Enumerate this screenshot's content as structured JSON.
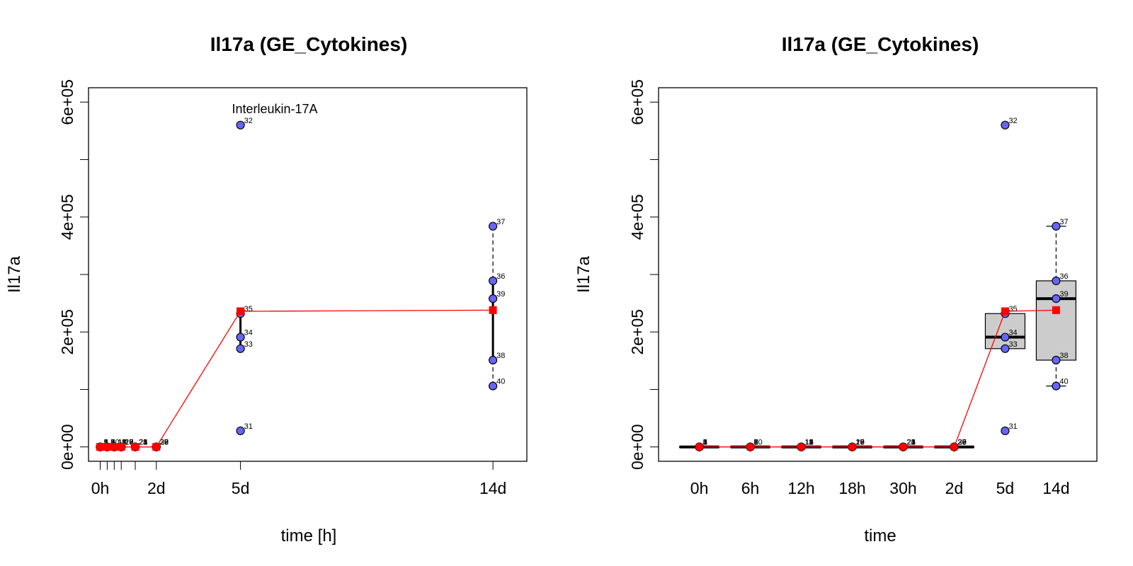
{
  "colors": {
    "points": "#6666ff",
    "point_stroke": "#000000",
    "mean": "#ff0000",
    "box_fill": "#cccccc"
  },
  "chart_data": [
    {
      "type": "scatter",
      "title": "Il17a (GE_Cytokines)",
      "xlabel": "time [h]",
      "ylabel": "Il17a",
      "annotation": "Interleukin-17A",
      "xlim": [
        -10,
        365
      ],
      "ylim": [
        -25000,
        625000
      ],
      "y_ticks": [
        0,
        200000,
        400000,
        600000
      ],
      "y_tick_labels": [
        "0e+00",
        "2e+05",
        "4e+05",
        "6e+05"
      ],
      "x_minor_ticks": [
        0,
        6,
        12,
        18,
        30
      ],
      "x_ticks": [
        0,
        48,
        120,
        336
      ],
      "x_tick_labels": [
        "0h",
        "2d",
        "5d",
        "14d"
      ],
      "points": [
        {
          "x": 0,
          "y": 0,
          "label": "1"
        },
        {
          "x": 0,
          "y": 0,
          "label": "2"
        },
        {
          "x": 0,
          "y": 0,
          "label": "3"
        },
        {
          "x": 0,
          "y": 0,
          "label": "4"
        },
        {
          "x": 0,
          "y": 0,
          "label": "5"
        },
        {
          "x": 6,
          "y": 0,
          "label": "6"
        },
        {
          "x": 6,
          "y": 0,
          "label": "7"
        },
        {
          "x": 6,
          "y": 0,
          "label": "8"
        },
        {
          "x": 6,
          "y": 0,
          "label": "9"
        },
        {
          "x": 6,
          "y": 0,
          "label": "10"
        },
        {
          "x": 12,
          "y": 0,
          "label": "11"
        },
        {
          "x": 12,
          "y": 0,
          "label": "12"
        },
        {
          "x": 12,
          "y": 0,
          "label": "13"
        },
        {
          "x": 12,
          "y": 0,
          "label": "14"
        },
        {
          "x": 12,
          "y": 0,
          "label": "15"
        },
        {
          "x": 18,
          "y": 0,
          "label": "16"
        },
        {
          "x": 18,
          "y": 0,
          "label": "17"
        },
        {
          "x": 18,
          "y": 0,
          "label": "18"
        },
        {
          "x": 18,
          "y": 0,
          "label": "19"
        },
        {
          "x": 18,
          "y": 0,
          "label": "20"
        },
        {
          "x": 30,
          "y": 0,
          "label": "21"
        },
        {
          "x": 30,
          "y": 0,
          "label": "22"
        },
        {
          "x": 30,
          "y": 0,
          "label": "23"
        },
        {
          "x": 30,
          "y": 0,
          "label": "24"
        },
        {
          "x": 30,
          "y": 0,
          "label": "25"
        },
        {
          "x": 48,
          "y": 0,
          "label": "26"
        },
        {
          "x": 48,
          "y": 0,
          "label": "27"
        },
        {
          "x": 48,
          "y": 0,
          "label": "28"
        },
        {
          "x": 48,
          "y": 0,
          "label": "29"
        },
        {
          "x": 48,
          "y": 0,
          "label": "30"
        },
        {
          "x": 120,
          "y": 28000,
          "label": "31"
        },
        {
          "x": 120,
          "y": 560000,
          "label": "32"
        },
        {
          "x": 120,
          "y": 171000,
          "label": "33"
        },
        {
          "x": 120,
          "y": 191000,
          "label": "34"
        },
        {
          "x": 120,
          "y": 232000,
          "label": "35"
        },
        {
          "x": 336,
          "y": 289000,
          "label": "36"
        },
        {
          "x": 336,
          "y": 384000,
          "label": "37"
        },
        {
          "x": 336,
          "y": 151000,
          "label": "38"
        },
        {
          "x": 336,
          "y": 258000,
          "label": "39"
        },
        {
          "x": 336,
          "y": 106000,
          "label": "40"
        }
      ],
      "mean_line": {
        "x": [
          0,
          6,
          12,
          18,
          30,
          48,
          120,
          336
        ],
        "y": [
          0,
          0,
          0,
          0,
          0,
          0,
          236000,
          238000
        ]
      },
      "whiskers": [
        {
          "x": 120,
          "low": 171000,
          "high": 232000,
          "whisker_low": 171000,
          "whisker_high": 232000
        },
        {
          "x": 336,
          "low": 151000,
          "high": 289000,
          "whisker_low": 106000,
          "whisker_high": 384000
        }
      ]
    },
    {
      "type": "box",
      "title": "Il17a (GE_Cytokines)",
      "xlabel": "time",
      "ylabel": "Il17a",
      "ylim": [
        -25000,
        625000
      ],
      "y_ticks": [
        0,
        200000,
        400000,
        600000
      ],
      "y_tick_labels": [
        "0e+00",
        "2e+05",
        "4e+05",
        "6e+05"
      ],
      "categories": [
        "0h",
        "6h",
        "12h",
        "18h",
        "30h",
        "2d",
        "5d",
        "14d"
      ],
      "boxes": [
        {
          "q1": 0,
          "median": 0,
          "q3": 0,
          "whisker_low": 0,
          "whisker_high": 0
        },
        {
          "q1": 0,
          "median": 0,
          "q3": 0,
          "whisker_low": 0,
          "whisker_high": 0
        },
        {
          "q1": 0,
          "median": 0,
          "q3": 0,
          "whisker_low": 0,
          "whisker_high": 0
        },
        {
          "q1": 0,
          "median": 0,
          "q3": 0,
          "whisker_low": 0,
          "whisker_high": 0
        },
        {
          "q1": 0,
          "median": 0,
          "q3": 0,
          "whisker_low": 0,
          "whisker_high": 0
        },
        {
          "q1": 0,
          "median": 0,
          "q3": 0,
          "whisker_low": 0,
          "whisker_high": 0
        },
        {
          "q1": 171000,
          "median": 191000,
          "q3": 232000,
          "whisker_low": 171000,
          "whisker_high": 232000
        },
        {
          "q1": 151000,
          "median": 258000,
          "q3": 289000,
          "whisker_low": 106000,
          "whisker_high": 384000
        }
      ],
      "points": [
        {
          "cat": 0,
          "y": 0,
          "label": "1"
        },
        {
          "cat": 0,
          "y": 0,
          "label": "2"
        },
        {
          "cat": 0,
          "y": 0,
          "label": "3"
        },
        {
          "cat": 0,
          "y": 0,
          "label": "4"
        },
        {
          "cat": 0,
          "y": 0,
          "label": "5"
        },
        {
          "cat": 1,
          "y": 0,
          "label": "6"
        },
        {
          "cat": 1,
          "y": 0,
          "label": "7"
        },
        {
          "cat": 1,
          "y": 0,
          "label": "8"
        },
        {
          "cat": 1,
          "y": 0,
          "label": "9"
        },
        {
          "cat": 1,
          "y": 0,
          "label": "10"
        },
        {
          "cat": 2,
          "y": 0,
          "label": "11"
        },
        {
          "cat": 2,
          "y": 0,
          "label": "12"
        },
        {
          "cat": 2,
          "y": 0,
          "label": "13"
        },
        {
          "cat": 2,
          "y": 0,
          "label": "14"
        },
        {
          "cat": 2,
          "y": 0,
          "label": "15"
        },
        {
          "cat": 3,
          "y": 0,
          "label": "16"
        },
        {
          "cat": 3,
          "y": 0,
          "label": "17"
        },
        {
          "cat": 3,
          "y": 0,
          "label": "18"
        },
        {
          "cat": 3,
          "y": 0,
          "label": "19"
        },
        {
          "cat": 3,
          "y": 0,
          "label": "20"
        },
        {
          "cat": 4,
          "y": 0,
          "label": "21"
        },
        {
          "cat": 4,
          "y": 0,
          "label": "22"
        },
        {
          "cat": 4,
          "y": 0,
          "label": "23"
        },
        {
          "cat": 4,
          "y": 0,
          "label": "24"
        },
        {
          "cat": 4,
          "y": 0,
          "label": "25"
        },
        {
          "cat": 5,
          "y": 0,
          "label": "26"
        },
        {
          "cat": 5,
          "y": 0,
          "label": "27"
        },
        {
          "cat": 5,
          "y": 0,
          "label": "28"
        },
        {
          "cat": 5,
          "y": 0,
          "label": "29"
        },
        {
          "cat": 5,
          "y": 0,
          "label": "30"
        },
        {
          "cat": 6,
          "y": 28000,
          "label": "31"
        },
        {
          "cat": 6,
          "y": 560000,
          "label": "32"
        },
        {
          "cat": 6,
          "y": 171000,
          "label": "33"
        },
        {
          "cat": 6,
          "y": 191000,
          "label": "34"
        },
        {
          "cat": 6,
          "y": 232000,
          "label": "35"
        },
        {
          "cat": 7,
          "y": 289000,
          "label": "36"
        },
        {
          "cat": 7,
          "y": 384000,
          "label": "37"
        },
        {
          "cat": 7,
          "y": 151000,
          "label": "38"
        },
        {
          "cat": 7,
          "y": 258000,
          "label": "39"
        },
        {
          "cat": 7,
          "y": 106000,
          "label": "40"
        }
      ],
      "mean_line": [
        0,
        0,
        0,
        0,
        0,
        0,
        236000,
        238000
      ]
    }
  ]
}
